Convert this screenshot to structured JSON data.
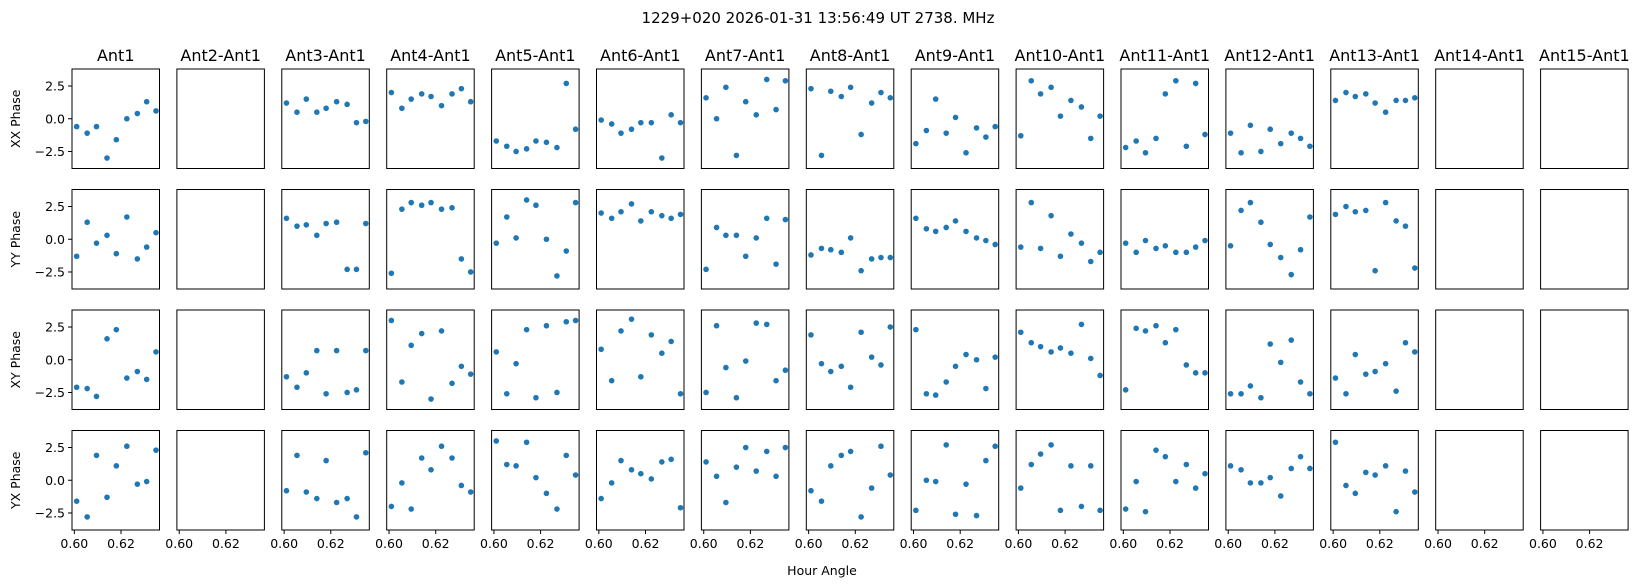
{
  "figure": {
    "title": "1229+020  2026-01-31 13:56:49 UT  2738. MHz",
    "xlabel": "Hour Angle",
    "marker_color": "#1f77b4"
  },
  "chart_data": {
    "type": "scatter",
    "columns": [
      "Ant1",
      "Ant2-Ant1",
      "Ant3-Ant1",
      "Ant4-Ant1",
      "Ant5-Ant1",
      "Ant6-Ant1",
      "Ant7-Ant1",
      "Ant8-Ant1",
      "Ant9-Ant1",
      "Ant10-Ant1",
      "Ant11-Ant1",
      "Ant12-Ant1",
      "Ant13-Ant1",
      "Ant14-Ant1",
      "Ant15-Ant1"
    ],
    "rows": [
      "XX Phase",
      "YY Phase",
      "XY Phase",
      "YX Phase"
    ],
    "x": [
      0.601,
      0.6055,
      0.6095,
      0.614,
      0.618,
      0.6225,
      0.627,
      0.631,
      0.635
    ],
    "xlim": [
      0.599,
      0.6365
    ],
    "ylim": [
      -3.8,
      3.8
    ],
    "xticks": [
      0.6,
      0.62
    ],
    "xtick_labels": [
      "0.60",
      "0.62"
    ],
    "yticks": [
      2.5,
      0.0,
      -2.5
    ],
    "ytick_labels": [
      "2.5",
      "0.0",
      "−2.5"
    ],
    "grid": false,
    "series": [
      [
        [
          -0.6,
          -1.1,
          -0.6,
          -3.0,
          -1.6,
          0.0,
          0.4,
          1.3,
          0.6
        ],
        [],
        [
          1.2,
          0.5,
          1.5,
          0.5,
          0.8,
          1.3,
          1.1,
          -0.3,
          -0.2
        ],
        [
          2.0,
          0.8,
          1.5,
          1.9,
          1.7,
          1.0,
          1.9,
          2.3,
          1.3
        ],
        [
          -1.7,
          -2.1,
          -2.5,
          -2.3,
          -1.7,
          -1.8,
          -2.2,
          2.7,
          -0.8
        ],
        [
          -0.1,
          -0.4,
          -1.1,
          -0.8,
          -0.3,
          -0.3,
          -3.0,
          0.3,
          -0.3
        ],
        [
          1.6,
          0.0,
          2.4,
          -2.8,
          1.3,
          0.3,
          3.0,
          0.7,
          2.9
        ],
        [
          2.3,
          -2.8,
          2.1,
          1.7,
          2.4,
          -1.2,
          1.2,
          2.0,
          1.6
        ],
        [
          -1.9,
          -0.9,
          1.5,
          -1.1,
          0.1,
          -2.6,
          -0.7,
          -1.4,
          -0.6
        ],
        [
          -1.3,
          2.9,
          1.9,
          2.4,
          0.2,
          1.4,
          0.9,
          -1.5,
          0.2
        ],
        [
          -2.2,
          -1.7,
          -2.6,
          -1.5,
          1.9,
          2.9,
          -2.1,
          2.7,
          -1.2
        ],
        [
          -1.1,
          -2.6,
          -0.5,
          -2.5,
          -0.8,
          -1.9,
          -1.1,
          -1.5,
          -2.1
        ],
        [
          1.4,
          2.0,
          1.7,
          1.9,
          1.2,
          0.5,
          1.4,
          1.4,
          1.6
        ],
        [],
        []
      ],
      [
        [
          -1.3,
          1.3,
          -0.3,
          0.3,
          -1.1,
          1.7,
          -1.5,
          -0.6,
          0.5
        ],
        [],
        [
          1.6,
          1.0,
          1.1,
          0.3,
          1.2,
          1.3,
          -2.3,
          -2.3,
          1.2
        ],
        [
          -2.6,
          2.3,
          2.8,
          2.6,
          2.8,
          2.3,
          2.4,
          -1.5,
          -2.5
        ],
        [
          -0.3,
          1.7,
          0.1,
          3.0,
          2.6,
          0.0,
          -2.8,
          -0.9,
          2.8
        ],
        [
          2.0,
          1.6,
          2.1,
          2.7,
          1.4,
          2.1,
          1.8,
          1.6,
          1.9
        ],
        [
          -2.3,
          0.9,
          0.3,
          0.3,
          -1.3,
          0.1,
          1.6,
          -1.9,
          1.5
        ],
        [
          -1.2,
          -0.7,
          -0.8,
          -1.0,
          0.1,
          -2.4,
          -1.5,
          -1.4,
          -1.4
        ],
        [
          1.6,
          0.8,
          0.6,
          0.9,
          1.4,
          0.6,
          0.1,
          -0.1,
          -0.4
        ],
        [
          -0.6,
          2.8,
          -0.7,
          1.8,
          -1.3,
          0.4,
          -0.3,
          -1.7,
          -1.0
        ],
        [
          -0.3,
          -1.0,
          -0.1,
          -0.7,
          -0.5,
          -1.0,
          -1.0,
          -0.6,
          -0.1
        ],
        [
          -0.5,
          2.2,
          2.8,
          1.3,
          -0.4,
          -1.4,
          -2.7,
          -0.8,
          1.7
        ],
        [
          1.9,
          2.5,
          2.1,
          2.2,
          -2.4,
          2.8,
          1.4,
          1.0,
          -2.2
        ],
        [],
        []
      ],
      [
        [
          -2.1,
          -2.2,
          -2.8,
          1.6,
          2.3,
          -1.4,
          -0.9,
          -1.5,
          0.6
        ],
        [],
        [
          -1.3,
          -2.1,
          -1.0,
          0.7,
          -2.6,
          0.7,
          -2.5,
          -2.3,
          0.7
        ],
        [
          3.0,
          -1.7,
          1.1,
          2.0,
          -3.0,
          2.2,
          -1.8,
          -0.5,
          -1.1
        ],
        [
          0.6,
          -2.6,
          -0.3,
          2.3,
          -2.9,
          2.6,
          -2.5,
          2.9,
          3.0
        ],
        [
          0.8,
          -1.6,
          2.2,
          3.1,
          -1.3,
          1.9,
          0.5,
          1.4,
          -2.6
        ],
        [
          -2.5,
          2.6,
          -0.6,
          -2.9,
          -0.1,
          2.8,
          2.7,
          -1.6,
          -0.8
        ],
        [
          1.9,
          -0.3,
          -0.9,
          -0.5,
          -2.1,
          2.1,
          0.2,
          -0.4,
          2.5
        ],
        [
          2.3,
          -2.6,
          -2.7,
          -1.7,
          -0.5,
          0.4,
          0.0,
          -2.2,
          0.2
        ],
        [
          2.1,
          1.3,
          1.0,
          0.6,
          0.9,
          0.5,
          2.7,
          0.1,
          -1.2
        ],
        [
          -2.3,
          2.4,
          2.2,
          2.6,
          1.3,
          2.3,
          -0.4,
          -1.0,
          -1.0
        ],
        [
          -2.6,
          -2.6,
          -2.0,
          -2.9,
          1.2,
          -0.2,
          1.5,
          -1.7,
          -2.6
        ],
        [
          -1.4,
          -2.6,
          0.4,
          -1.1,
          -0.9,
          -0.3,
          -2.4,
          1.3,
          0.6
        ],
        [],
        []
      ],
      [
        [
          -1.6,
          -2.8,
          1.9,
          -1.3,
          1.1,
          2.6,
          -0.3,
          -0.1,
          2.3
        ],
        [],
        [
          -0.8,
          1.9,
          -0.9,
          -1.4,
          1.5,
          -1.7,
          -1.4,
          -2.8,
          2.1
        ],
        [
          -2.0,
          -0.2,
          -2.2,
          1.7,
          0.8,
          2.6,
          1.7,
          -0.4,
          -0.9
        ],
        [
          3.0,
          1.2,
          1.1,
          2.9,
          0.2,
          -1.0,
          -2.2,
          1.9,
          0.4
        ],
        [
          -1.4,
          -0.2,
          1.5,
          0.8,
          0.5,
          0.1,
          1.4,
          1.6,
          -2.1
        ],
        [
          1.4,
          0.3,
          -1.7,
          1.0,
          2.5,
          0.7,
          2.2,
          0.3,
          2.5
        ],
        [
          -0.8,
          -1.6,
          1.1,
          1.9,
          2.2,
          -2.8,
          -0.6,
          2.6,
          0.4
        ],
        [
          -2.3,
          0.0,
          -0.1,
          2.7,
          -2.6,
          -0.3,
          -2.7,
          1.5,
          2.6
        ],
        [
          -0.6,
          1.2,
          2.0,
          2.7,
          -2.3,
          1.1,
          -2.0,
          1.1,
          -2.3
        ],
        [
          -2.2,
          -0.1,
          -2.4,
          2.3,
          1.8,
          -0.1,
          1.2,
          -0.6,
          0.5
        ],
        [
          1.1,
          0.8,
          -0.2,
          -0.2,
          0.2,
          -1.2,
          0.9,
          1.8,
          0.9
        ],
        [
          2.9,
          -0.4,
          -1.0,
          0.6,
          0.4,
          1.1,
          -2.4,
          0.7,
          -0.9
        ],
        [],
        []
      ]
    ]
  }
}
